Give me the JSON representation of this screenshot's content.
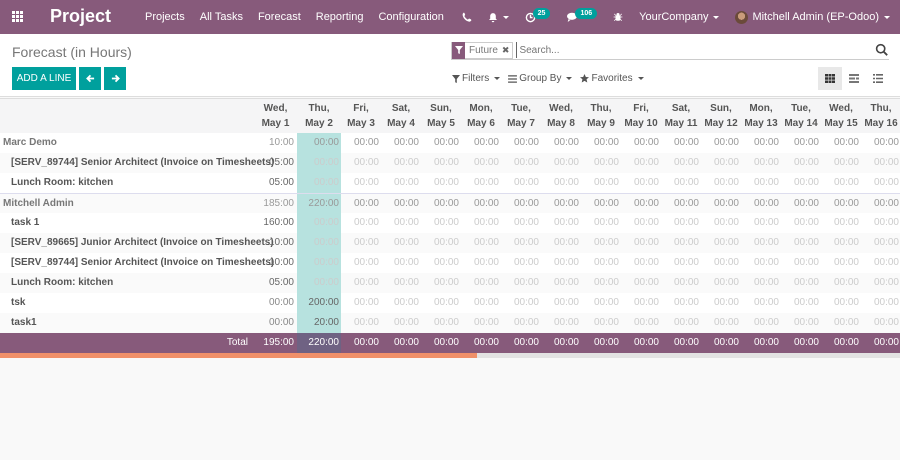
{
  "navbar": {
    "app_name": "Project",
    "menu": [
      "Projects",
      "All Tasks",
      "Forecast",
      "Reporting",
      "Configuration"
    ],
    "activity_badge": "25",
    "messages_badge": "106",
    "company": "YourCompany",
    "user": "Mitchell Admin (EP-Odoo)",
    "icons": [
      "apps-grid-icon",
      "phone-icon",
      "bell-icon",
      "clock-activity-icon",
      "chat-icon",
      "bug-debug-icon"
    ]
  },
  "control_panel": {
    "title": "Forecast (in Hours)",
    "add_line_label": "ADD A LINE",
    "prev_label": "←",
    "next_label": "→",
    "search": {
      "facet": "Future",
      "placeholder": "Search...",
      "value": ""
    },
    "filters_label": "Filters",
    "groupby_label": "Group By",
    "favorites_label": "Favorites",
    "views": [
      "grid",
      "pivot",
      "list"
    ],
    "active_view": "grid"
  },
  "grid": {
    "columns": [
      {
        "day": "Wed,",
        "date": "May 1"
      },
      {
        "day": "Thu,",
        "date": "May 2"
      },
      {
        "day": "Fri,",
        "date": "May 3"
      },
      {
        "day": "Sat,",
        "date": "May 4"
      },
      {
        "day": "Sun,",
        "date": "May 5"
      },
      {
        "day": "Mon,",
        "date": "May 6"
      },
      {
        "day": "Tue,",
        "date": "May 7"
      },
      {
        "day": "Wed,",
        "date": "May 8"
      },
      {
        "day": "Thu,",
        "date": "May 9"
      },
      {
        "day": "Fri,",
        "date": "May 10"
      },
      {
        "day": "Sat,",
        "date": "May 11"
      },
      {
        "day": "Sun,",
        "date": "May 12"
      },
      {
        "day": "Mon,",
        "date": "May 13"
      },
      {
        "day": "Tue,",
        "date": "May 14"
      },
      {
        "day": "Wed,",
        "date": "May 15"
      },
      {
        "day": "Thu,",
        "date": "May 16"
      }
    ],
    "highlight_column": 1,
    "groups": [
      {
        "name": "Marc Demo",
        "values": [
          "10:00",
          "00:00",
          "00:00",
          "00:00",
          "00:00",
          "00:00",
          "00:00",
          "00:00",
          "00:00",
          "00:00",
          "00:00",
          "00:00",
          "00:00",
          "00:00",
          "00:00",
          "00:00"
        ],
        "rows": [
          {
            "label": "[SERV_89744] Senior Architect (Invoice on Timesheets)",
            "values": [
              "05:00",
              "00:00",
              "00:00",
              "00:00",
              "00:00",
              "00:00",
              "00:00",
              "00:00",
              "00:00",
              "00:00",
              "00:00",
              "00:00",
              "00:00",
              "00:00",
              "00:00",
              "00:00"
            ]
          },
          {
            "label": "Lunch Room: kitchen",
            "values": [
              "05:00",
              "00:00",
              "00:00",
              "00:00",
              "00:00",
              "00:00",
              "00:00",
              "00:00",
              "00:00",
              "00:00",
              "00:00",
              "00:00",
              "00:00",
              "00:00",
              "00:00",
              "00:00"
            ]
          }
        ]
      },
      {
        "name": "Mitchell Admin",
        "values": [
          "185:00",
          "220:00",
          "00:00",
          "00:00",
          "00:00",
          "00:00",
          "00:00",
          "00:00",
          "00:00",
          "00:00",
          "00:00",
          "00:00",
          "00:00",
          "00:00",
          "00:00",
          "00:00"
        ],
        "rows": [
          {
            "label": "task 1",
            "values": [
              "160:00",
              "00:00",
              "00:00",
              "00:00",
              "00:00",
              "00:00",
              "00:00",
              "00:00",
              "00:00",
              "00:00",
              "00:00",
              "00:00",
              "00:00",
              "00:00",
              "00:00",
              "00:00"
            ]
          },
          {
            "label": "[SERV_89665] Junior Architect (Invoice on Timesheets)",
            "values": [
              "10:00",
              "00:00",
              "00:00",
              "00:00",
              "00:00",
              "00:00",
              "00:00",
              "00:00",
              "00:00",
              "00:00",
              "00:00",
              "00:00",
              "00:00",
              "00:00",
              "00:00",
              "00:00"
            ]
          },
          {
            "label": "[SERV_89744] Senior Architect (Invoice on Timesheets)",
            "values": [
              "10:00",
              "00:00",
              "00:00",
              "00:00",
              "00:00",
              "00:00",
              "00:00",
              "00:00",
              "00:00",
              "00:00",
              "00:00",
              "00:00",
              "00:00",
              "00:00",
              "00:00",
              "00:00"
            ]
          },
          {
            "label": "Lunch Room: kitchen",
            "values": [
              "05:00",
              "00:00",
              "00:00",
              "00:00",
              "00:00",
              "00:00",
              "00:00",
              "00:00",
              "00:00",
              "00:00",
              "00:00",
              "00:00",
              "00:00",
              "00:00",
              "00:00",
              "00:00"
            ]
          },
          {
            "label": "tsk",
            "values": [
              "00:00",
              "200:00",
              "00:00",
              "00:00",
              "00:00",
              "00:00",
              "00:00",
              "00:00",
              "00:00",
              "00:00",
              "00:00",
              "00:00",
              "00:00",
              "00:00",
              "00:00",
              "00:00"
            ]
          },
          {
            "label": "task1",
            "values": [
              "00:00",
              "20:00",
              "00:00",
              "00:00",
              "00:00",
              "00:00",
              "00:00",
              "00:00",
              "00:00",
              "00:00",
              "00:00",
              "00:00",
              "00:00",
              "00:00",
              "00:00",
              "00:00"
            ]
          }
        ]
      }
    ],
    "total": {
      "label": "Total",
      "values": [
        "195:00",
        "220:00",
        "00:00",
        "00:00",
        "00:00",
        "00:00",
        "00:00",
        "00:00",
        "00:00",
        "00:00",
        "00:00",
        "00:00",
        "00:00",
        "00:00",
        "00:00",
        "00:00"
      ]
    }
  },
  "scrollbar": {
    "position_pct": 53
  },
  "colors": {
    "brand": "#875a7b",
    "accent": "#00a09d",
    "highlight": "#b7e2df",
    "progress": "#f0906a"
  }
}
